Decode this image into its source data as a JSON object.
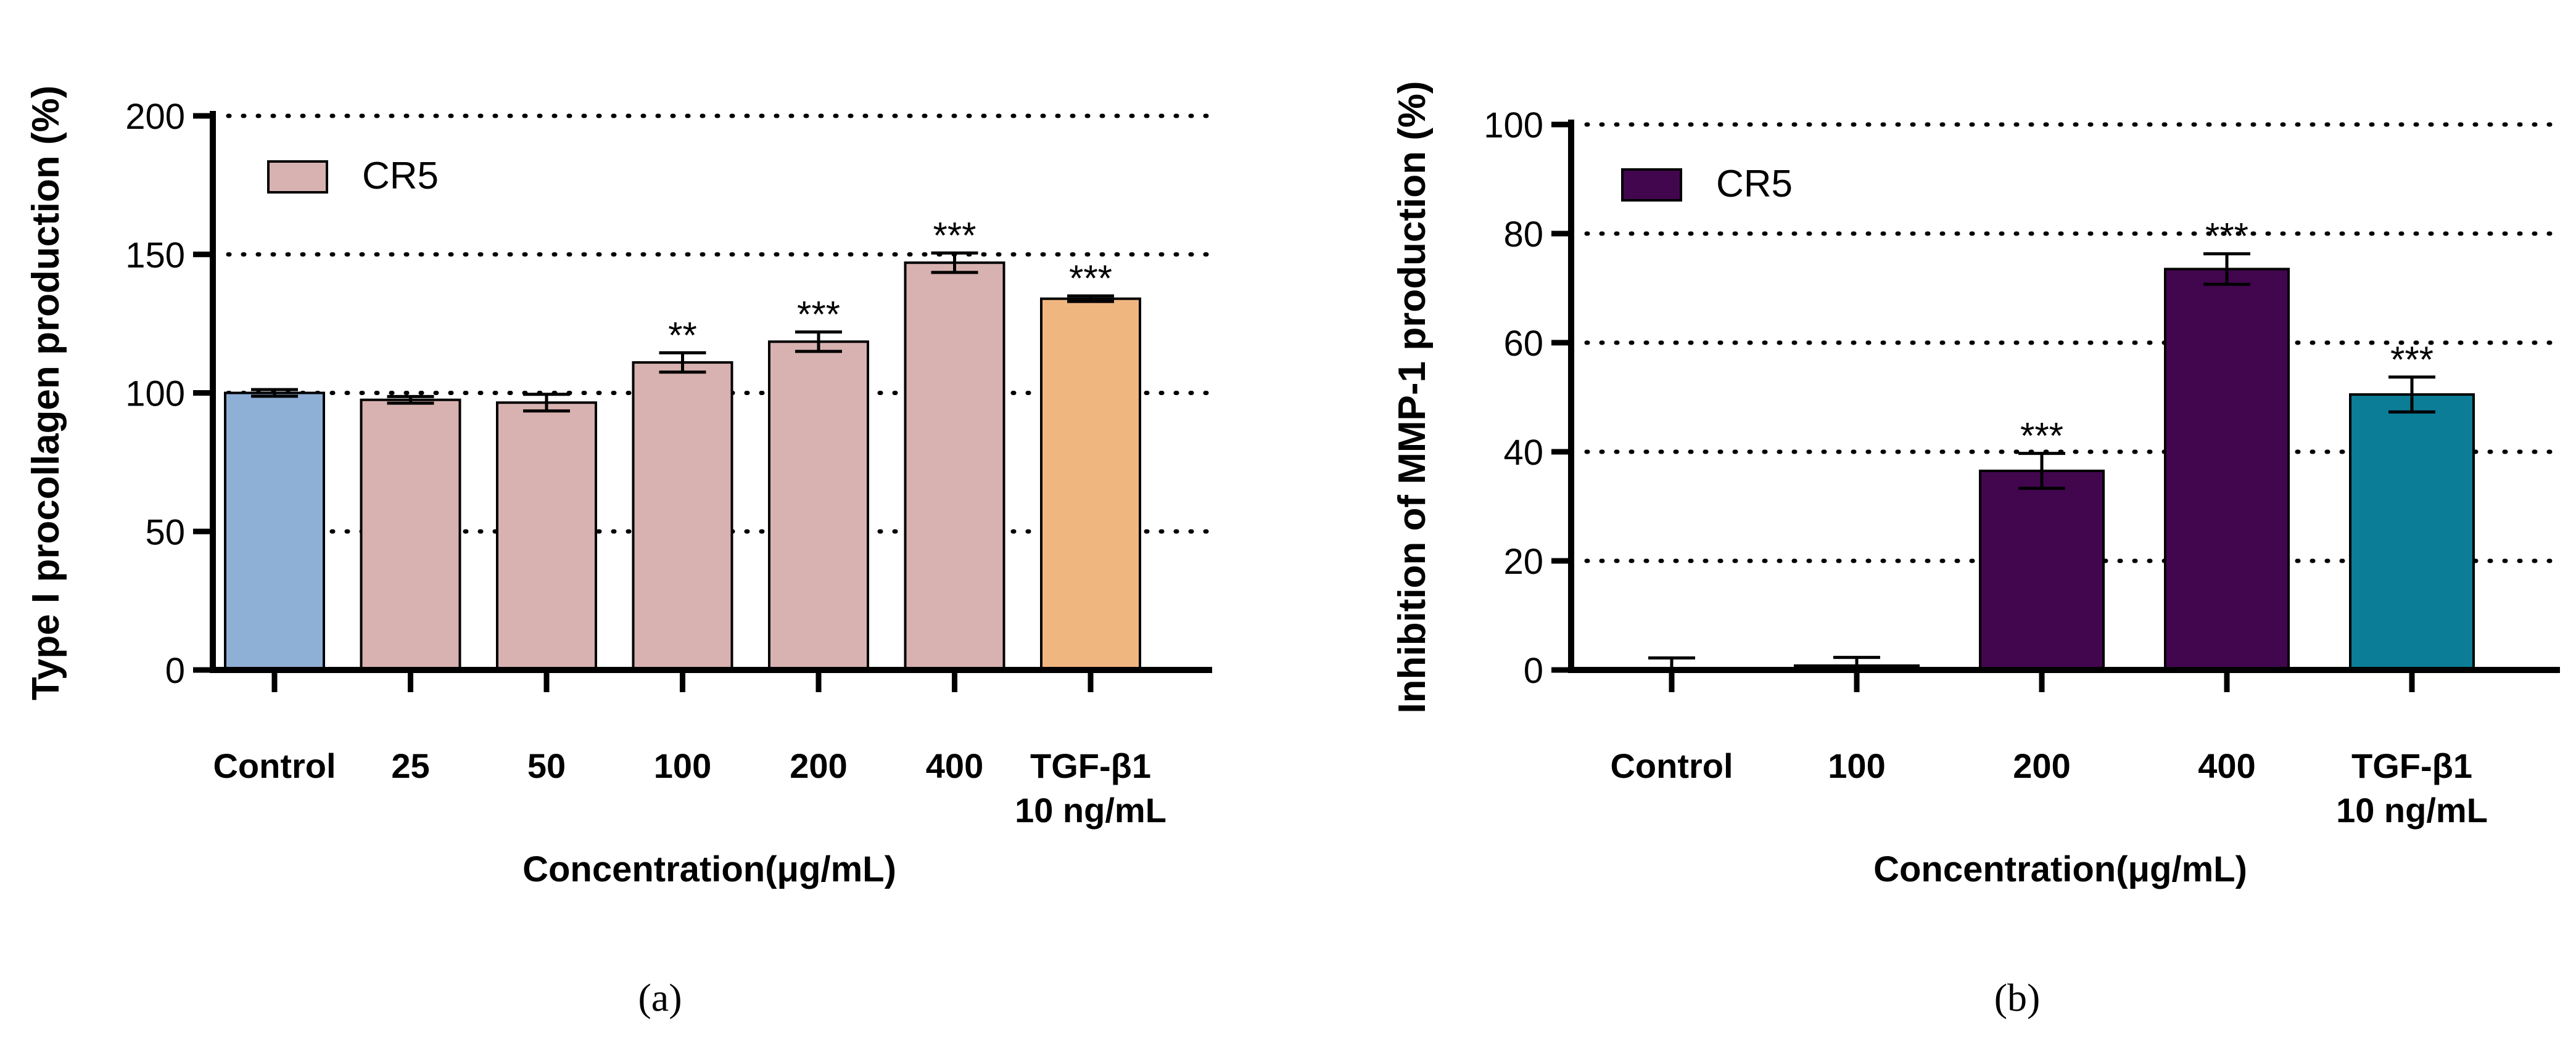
{
  "chart_data": [
    {
      "type": "bar",
      "panel_label": "(a)",
      "ylabel": "Type I procollagen production (%)",
      "xlabel": "Concentration(μg/mL)",
      "ylim": [
        0,
        200
      ],
      "yticks": [
        0,
        50,
        100,
        150,
        200
      ],
      "grid": "dotted horizontal at 50, 100, 150, 200",
      "legend": {
        "position": "top-left",
        "label": "CR5",
        "color": "#d8b2b0"
      },
      "categories": [
        "Control",
        "25",
        "50",
        "100",
        "200",
        "400",
        "TGF-β1"
      ],
      "category_sublabels": [
        "",
        "",
        "",
        "",
        "",
        "",
        "10 ng/mL"
      ],
      "values": [
        100,
        97.5,
        96.5,
        111,
        118.5,
        147,
        134
      ],
      "errors": [
        1.2,
        1.2,
        3,
        3.5,
        3.5,
        3.5,
        1
      ],
      "significance": [
        "",
        "",
        "",
        "**",
        "***",
        "***",
        "***"
      ],
      "colors": [
        "#8eafd6",
        "#d8b2b0",
        "#d8b2b0",
        "#d8b2b0",
        "#d8b2b0",
        "#d8b2b0",
        "#f0b680"
      ]
    },
    {
      "type": "bar",
      "panel_label": "(b)",
      "ylabel": "Inhibition of MMP-1 production (%)",
      "xlabel": "Concentration(μg/mL)",
      "ylim": [
        0,
        100
      ],
      "yticks": [
        0,
        20,
        40,
        60,
        80,
        100
      ],
      "grid": "dotted horizontal at 20, 40, 60, 80, 100",
      "legend": {
        "position": "top-left",
        "label": "CR5",
        "color": "#42064f"
      },
      "categories": [
        "Control",
        "100",
        "200",
        "400",
        "TGF-β1"
      ],
      "category_sublabels": [
        "",
        "",
        "",
        "",
        "10 ng/mL"
      ],
      "values": [
        0,
        0.8,
        36.5,
        73.5,
        50.5
      ],
      "errors": [
        2.2,
        1.5,
        3.2,
        2.8,
        3.2
      ],
      "significance": [
        "",
        "",
        "***",
        "***",
        "***"
      ],
      "colors": [
        "#42064f",
        "#42064f",
        "#42064f",
        "#42064f",
        "#0b7d96"
      ]
    }
  ]
}
